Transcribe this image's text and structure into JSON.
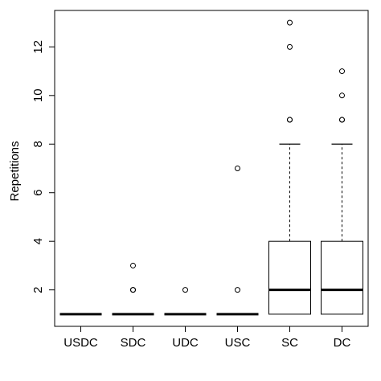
{
  "chart_data": {
    "type": "box",
    "title": "",
    "xlabel": "",
    "ylabel": "Repetitions",
    "ylim": [
      0.5,
      13.5
    ],
    "yticks": [
      2,
      4,
      6,
      8,
      10,
      12
    ],
    "grid": false,
    "categories": [
      "USDC",
      "SDC",
      "UDC",
      "USC",
      "SC",
      "DC"
    ],
    "boxes": [
      {
        "category": "USDC",
        "whisker_low": 1,
        "q1": 1,
        "median": 1,
        "q3": 1,
        "whisker_high": 1,
        "outliers": []
      },
      {
        "category": "SDC",
        "whisker_low": 1,
        "q1": 1,
        "median": 1,
        "q3": 1,
        "whisker_high": 1,
        "outliers": [
          2,
          2,
          3
        ]
      },
      {
        "category": "UDC",
        "whisker_low": 1,
        "q1": 1,
        "median": 1,
        "q3": 1,
        "whisker_high": 1,
        "outliers": [
          2
        ]
      },
      {
        "category": "USC",
        "whisker_low": 1,
        "q1": 1,
        "median": 1,
        "q3": 1,
        "whisker_high": 1,
        "outliers": [
          2,
          7
        ]
      },
      {
        "category": "SC",
        "whisker_low": 1,
        "q1": 1,
        "median": 2,
        "q3": 4,
        "whisker_high": 8,
        "outliers": [
          9,
          9,
          12,
          13
        ]
      },
      {
        "category": "DC",
        "whisker_low": 1,
        "q1": 1,
        "median": 2,
        "q3": 4,
        "whisker_high": 8,
        "outliers": [
          9,
          9,
          10,
          11
        ]
      }
    ]
  }
}
